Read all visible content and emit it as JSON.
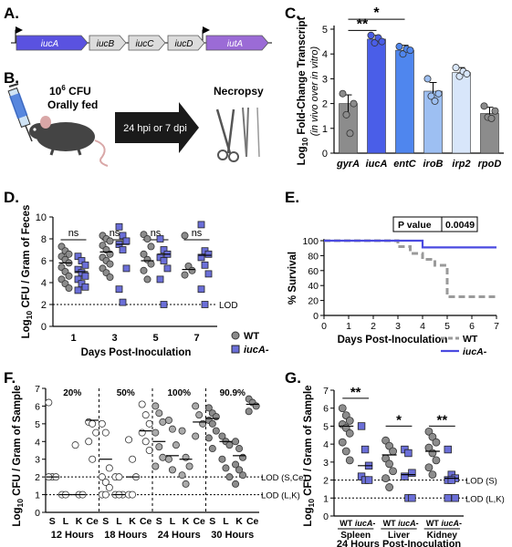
{
  "panels": {
    "A": "A.",
    "B": "B.",
    "C": "C.",
    "D": "D.",
    "E": "E.",
    "F": "F.",
    "G": "G."
  },
  "operon": {
    "genes": [
      {
        "label": "iucA",
        "color": "#5a52e0",
        "text_color": "#ffffff"
      },
      {
        "label": "iucB",
        "color": "#dcdcdc",
        "text_color": "#000000"
      },
      {
        "label": "iucC",
        "color": "#dcdcdc",
        "text_color": "#000000"
      },
      {
        "label": "iucD",
        "color": "#dcdcdc",
        "text_color": "#000000"
      },
      {
        "label": "iutA",
        "color": "#9b6bd6",
        "text_color": "#ffffff"
      }
    ]
  },
  "schematic": {
    "cfu_base": "10",
    "cfu_exp": "6",
    "cfu_unit": " CFU",
    "fed": "Orally fed",
    "arrow_label": "24 hpi or 7 dpi",
    "necropsy": "Necropsy"
  },
  "chart_data": [
    {
      "panel": "C",
      "type": "bar",
      "ylabel_pre": "Log",
      "ylabel_sub": "10",
      "ylabel_post": " Fold-Change Transcript",
      "ylabel2": "(in vivo over in vitro)",
      "ylim": [
        0,
        5
      ],
      "yticks": [
        "0",
        "1",
        "2",
        "3",
        "4",
        "5"
      ],
      "categories": [
        "gyrA",
        "iucA",
        "entC",
        "iroB",
        "irp2",
        "rpoD"
      ],
      "values": [
        2.0,
        4.6,
        4.15,
        2.5,
        3.25,
        1.6
      ],
      "errors": [
        0.35,
        0.15,
        0.2,
        0.35,
        0.2,
        0.25
      ],
      "colors": [
        "#8c8c8c",
        "#4a5ee8",
        "#4f86ee",
        "#9dbff2",
        "#d8e6fa",
        "#8c8c8c"
      ],
      "points": [
        [
          2.4,
          1.55,
          0.8,
          2.0
        ],
        [
          4.75,
          4.45,
          4.65,
          4.5
        ],
        [
          4.3,
          4.0,
          4.2,
          4.15
        ],
        [
          3.0,
          2.3,
          2.1,
          2.4
        ],
        [
          3.45,
          3.1,
          3.3,
          3.2
        ],
        [
          1.9,
          1.45,
          1.4,
          1.7
        ]
      ],
      "sig": [
        {
          "label": "**",
          "from": 0,
          "to": 1,
          "y": 4.95
        },
        {
          "label": "*",
          "from": 0,
          "to": 2,
          "y": 5.4
        }
      ]
    },
    {
      "panel": "D",
      "type": "scatter",
      "ylabel_pre": "Log",
      "ylabel_sub": "10",
      "ylabel_post": " CFU / Gram of Feces",
      "xlabel": "Days Post-Inoculation",
      "ylim": [
        0,
        10
      ],
      "yticks": [
        "0",
        "2",
        "4",
        "6",
        "8",
        "10"
      ],
      "categories": [
        "1",
        "3",
        "5",
        "7"
      ],
      "lod": 2,
      "lod_label": "LOD",
      "ns_label": "ns",
      "series": [
        {
          "name": "WT",
          "color": "#8c8c8c",
          "means": [
            5.8,
            6.8,
            6.0,
            5.2
          ],
          "values": [
            [
              7.3,
              6.9,
              6.6,
              6.4,
              6.1,
              5.8,
              5.4,
              5.0,
              4.6,
              4.3,
              3.9,
              3.5
            ],
            [
              8.3,
              8.0,
              7.8,
              7.4,
              7.0,
              6.6,
              6.3,
              6.0,
              5.7,
              5.3,
              4.9,
              4.5
            ],
            [
              8.4,
              8.0,
              7.3,
              6.6,
              6.1,
              5.7,
              5.1,
              4.3
            ],
            [
              8.3,
              5.5,
              5.1,
              4.7
            ]
          ]
        },
        {
          "name": "iucA-",
          "color": "#6b6fd8",
          "means": [
            5.0,
            7.5,
            6.6,
            6.5
          ],
          "values": [
            [
              6.4,
              6.0,
              5.6,
              5.2,
              4.9,
              4.6,
              4.3,
              3.9,
              3.6,
              3.3
            ],
            [
              9.1,
              8.3,
              7.8,
              7.5,
              7.0,
              5.3,
              3.4,
              2.2
            ],
            [
              8.0,
              7.0,
              6.6,
              6.3,
              6.0,
              5.3,
              4.3,
              2.0
            ],
            [
              9.3,
              6.9,
              6.6,
              6.3,
              5.6,
              4.8,
              3.4,
              2.0
            ]
          ]
        }
      ]
    },
    {
      "panel": "E",
      "type": "line",
      "ylabel": "% Survival",
      "xlabel": "Days Post-Inoculation",
      "xlim": [
        0,
        7
      ],
      "ylim": [
        0,
        100
      ],
      "xticks": [
        "0",
        "1",
        "2",
        "3",
        "4",
        "5",
        "6",
        "7"
      ],
      "yticks": [
        "0",
        "20",
        "40",
        "60",
        "80",
        "100"
      ],
      "pvalue_label": "P value",
      "pvalue": "0.0049",
      "series": [
        {
          "name": "WT",
          "color": "#9a9a9a",
          "x": [
            0,
            3,
            3,
            3.5,
            3.5,
            4,
            4,
            4.5,
            4.5,
            5,
            5,
            7
          ],
          "y": [
            100,
            100,
            92,
            92,
            83,
            83,
            75,
            75,
            67,
            67,
            25,
            25
          ]
        },
        {
          "name": "iucA-",
          "color": "#4a4ae0",
          "x": [
            0,
            4,
            4,
            7
          ],
          "y": [
            100,
            100,
            91,
            91
          ]
        }
      ]
    },
    {
      "panel": "F",
      "type": "scatter",
      "ylabel_pre": "Log",
      "ylabel_sub": "10",
      "ylabel_post": " CFU / Gram of Sample",
      "ylim": [
        0,
        7
      ],
      "yticks": [
        "0",
        "1",
        "2",
        "3",
        "4",
        "5",
        "6",
        "7"
      ],
      "groups": [
        {
          "label": "12 Hours",
          "pct": "20%",
          "fill": "#ffffff",
          "means": [
            2.0,
            1.0,
            1.0,
            5.2
          ],
          "values": [
            [
              6.2,
              2.0,
              2.0,
              2.0
            ],
            [
              1.0,
              1.0
            ],
            [
              3.8,
              1.0,
              1.0
            ],
            [
              5.1,
              5.0,
              4.5,
              4.0,
              3.0
            ]
          ]
        },
        {
          "label": "18 Hours",
          "pct": "50%",
          "fill": "#ffffff",
          "means": [
            3.0,
            1.0,
            2.0,
            4.6
          ],
          "values": [
            [
              5.0,
              4.5,
              2.5,
              2.0,
              1.7,
              1.4,
              1.0,
              1.0
            ],
            [
              2.0,
              2.0,
              1.0,
              1.0,
              1.0
            ],
            [
              4.1,
              3.0,
              2.0,
              1.0,
              1.0
            ],
            [
              6.1,
              5.5,
              5.0,
              4.5,
              4.0,
              3.5
            ]
          ]
        },
        {
          "label": "24 Hours",
          "pct": "100%",
          "fill": "#aaaaaa",
          "means": [
            4.0,
            3.2,
            3.0,
            5.1
          ],
          "values": [
            [
              6.0,
              5.6,
              5.1,
              4.5,
              3.7,
              3.1,
              2.6
            ],
            [
              5.2,
              4.7,
              3.8,
              3.0,
              2.4
            ],
            [
              4.6,
              3.1,
              2.6,
              2.1,
              1.6
            ],
            [
              6.0,
              5.5,
              5.0,
              4.3
            ]
          ]
        },
        {
          "label": "30 Hours",
          "pct": "90.9%",
          "fill": "#8c8c8c",
          "means": [
            5.3,
            4.0,
            3.2,
            6.1
          ],
          "values": [
            [
              5.9,
              5.6,
              5.4,
              5.2,
              5.0,
              4.6,
              4.2,
              3.6
            ],
            [
              4.3,
              4.0,
              3.8,
              3.0,
              2.5,
              2.0
            ],
            [
              4.0,
              3.6,
              3.1,
              2.7,
              2.4,
              2.1,
              1.6
            ],
            [
              6.4,
              6.2,
              6.0,
              5.7
            ]
          ]
        }
      ],
      "tissue_labels": [
        "S",
        "L",
        "K",
        "Ce"
      ],
      "lod_high": 2,
      "lod_high_label": "LOD (S,Ce)",
      "lod_low": 1,
      "lod_low_label": "LOD (L,K)"
    },
    {
      "panel": "G",
      "type": "scatter",
      "ylabel_pre": "Log",
      "ylabel_sub": "10",
      "ylabel_post": " CFU / Gram of Sample",
      "xlabel": "24 Hours Post-Inoculation",
      "ylim": [
        0,
        7
      ],
      "yticks": [
        "0",
        "1",
        "2",
        "3",
        "4",
        "5",
        "6",
        "7"
      ],
      "organs": [
        {
          "label": "Spleen",
          "sig": "**",
          "wt": [
            6.0,
            5.6,
            5.3,
            5.1,
            4.9,
            4.6,
            4.1,
            3.6,
            3.1
          ],
          "mut": [
            5.0,
            3.7,
            2.8,
            2.2,
            2.0,
            2.0
          ],
          "wt_mean": 5.0,
          "mut_mean": 2.8
        },
        {
          "label": "Liver",
          "sig": "*",
          "wt": [
            4.2,
            3.9,
            3.6,
            3.2,
            2.9,
            2.5,
            2.1,
            1.6
          ],
          "mut": [
            3.7,
            3.5,
            2.4,
            2.2,
            1.0,
            1.0
          ],
          "wt_mean": 3.4,
          "mut_mean": 2.3
        },
        {
          "label": "Kidney",
          "sig": "**",
          "wt": [
            4.7,
            4.4,
            4.1,
            3.8,
            3.5,
            3.1,
            2.7,
            2.3
          ],
          "mut": [
            3.7,
            2.3,
            2.1,
            2.0,
            2.0,
            1.0,
            1.0
          ],
          "wt_mean": 3.6,
          "mut_mean": 2.1
        }
      ],
      "wt_label": "WT",
      "mut_label": "iucA-",
      "lod_high": 2,
      "lod_high_label": "LOD (S)",
      "lod_low": 1,
      "lod_low_label": "LOD (L,K)"
    }
  ],
  "legend": {
    "wt": "WT",
    "mut": "iucA-"
  }
}
